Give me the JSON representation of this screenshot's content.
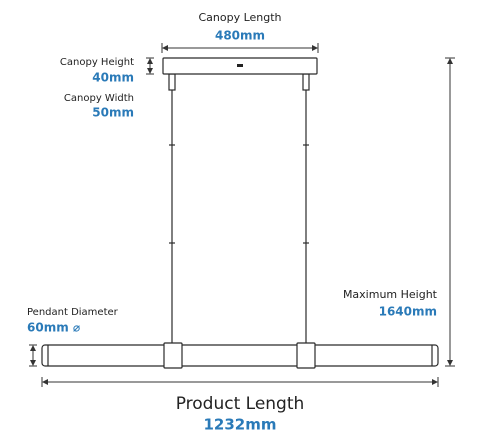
{
  "canopy_length": {
    "label": "Canopy Length",
    "value": "480mm"
  },
  "canopy_height": {
    "label": "Canopy Height",
    "value": "40mm"
  },
  "canopy_width": {
    "label": "Canopy Width",
    "value": "50mm"
  },
  "pendant_diameter": {
    "label": "Pendant Diameter",
    "value": "60mm ⌀"
  },
  "maximum_height": {
    "label": "Maximum Height",
    "value": "1640mm"
  },
  "product_length": {
    "label": "Product Length",
    "value": "1232mm"
  }
}
